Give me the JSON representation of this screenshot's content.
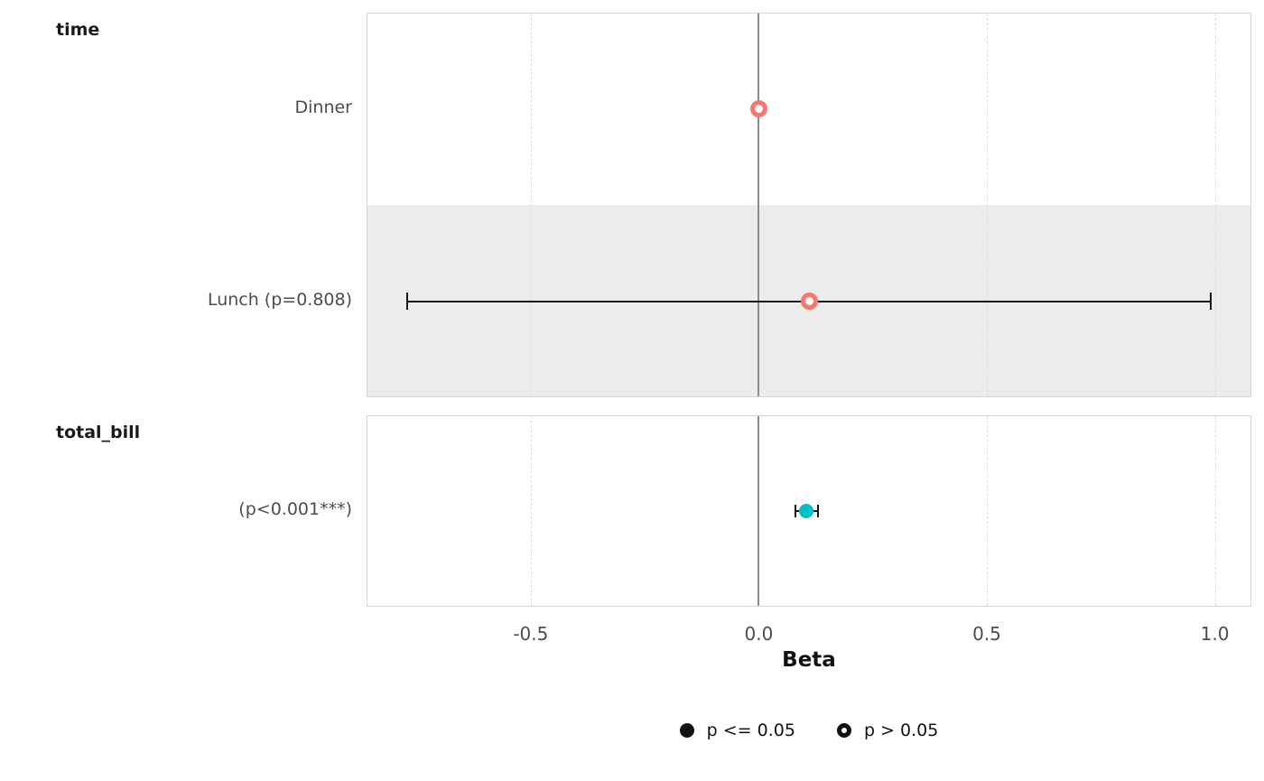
{
  "chart_data": {
    "type": "scatter",
    "subtype": "forest-coefficient-plot",
    "xlabel": "Beta",
    "xlim": [
      -0.86,
      1.08
    ],
    "xticks": [
      -0.5,
      0.0,
      0.5,
      1.0
    ],
    "xtick_labels": [
      "-0.5",
      "0.0",
      "0.5",
      "1.0"
    ],
    "gridlines_dashed": [
      -0.5,
      0.5,
      1.0
    ],
    "zero_line": 0.0,
    "panels": [
      {
        "title": "time",
        "rows": [
          {
            "label": "Dinner",
            "estimate": 0.0,
            "ci_low": null,
            "ci_high": null,
            "significant": false,
            "style": "hollow",
            "color": "#F8766D",
            "striped": false
          },
          {
            "label": "Lunch (p=0.808)",
            "estimate": 0.11,
            "ci_low": -0.77,
            "ci_high": 0.99,
            "significant": false,
            "style": "hollow",
            "color": "#F8766D",
            "striped": true
          }
        ]
      },
      {
        "title": "total_bill",
        "rows": [
          {
            "label": "(p<0.001***)",
            "estimate": 0.105,
            "ci_low": 0.08,
            "ci_high": 0.13,
            "significant": true,
            "style": "filled",
            "color": "#00BFC4",
            "striped": false
          }
        ]
      }
    ],
    "legend": [
      {
        "label": "p <= 0.05",
        "style": "filled"
      },
      {
        "label": "p > 0.05",
        "style": "hollow"
      }
    ],
    "colors": {
      "nonsignificant_point": "#F8766D",
      "significant_point": "#00BFC4",
      "stripe": "#ECECEC",
      "grid_dashed": "#DEDEDE",
      "zero_line": "#8A8A8A",
      "panel_border": "#D5D5D5",
      "errorbar": "#141414",
      "row_label_text": "#4D4D4D",
      "title_text": "#1A1A1A"
    }
  }
}
